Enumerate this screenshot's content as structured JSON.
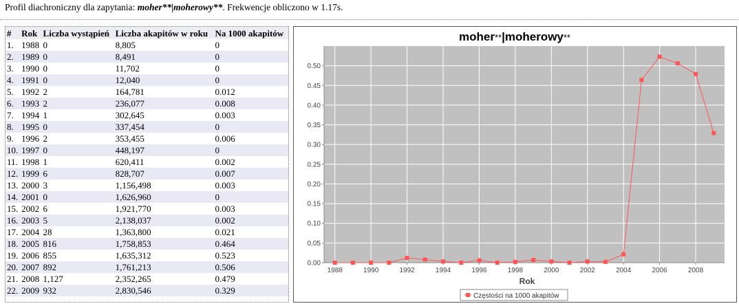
{
  "heading": {
    "prefix": "Profil diachroniczny dla zapytania: ",
    "query": "moher**|moherowy**",
    "suffix": ". Frekwencje obliczono w 1.17s."
  },
  "table": {
    "headers": [
      "#",
      "Rok",
      "Liczba wystąpień",
      "Liczba akapitów w roku",
      "Na 1000 akapitów"
    ],
    "rows": [
      [
        "1.",
        "1988",
        "0",
        "8,805",
        "0"
      ],
      [
        "2.",
        "1989",
        "0",
        "8,491",
        "0"
      ],
      [
        "3.",
        "1990",
        "0",
        "11,702",
        "0"
      ],
      [
        "4.",
        "1991",
        "0",
        "12,040",
        "0"
      ],
      [
        "5.",
        "1992",
        "2",
        "164,781",
        "0.012"
      ],
      [
        "6.",
        "1993",
        "2",
        "236,077",
        "0.008"
      ],
      [
        "7.",
        "1994",
        "1",
        "302,645",
        "0.003"
      ],
      [
        "8.",
        "1995",
        "0",
        "337,454",
        "0"
      ],
      [
        "9.",
        "1996",
        "2",
        "353,455",
        "0.006"
      ],
      [
        "10.",
        "1997",
        "0",
        "448,197",
        "0"
      ],
      [
        "11.",
        "1998",
        "1",
        "620,411",
        "0.002"
      ],
      [
        "12.",
        "1999",
        "6",
        "828,707",
        "0.007"
      ],
      [
        "13.",
        "2000",
        "3",
        "1,156,498",
        "0.003"
      ],
      [
        "14.",
        "2001",
        "0",
        "1,626,960",
        "0"
      ],
      [
        "15.",
        "2002",
        "6",
        "1,921,770",
        "0.003"
      ],
      [
        "16.",
        "2003",
        "5",
        "2,138,037",
        "0.002"
      ],
      [
        "17.",
        "2004",
        "28",
        "1,363,800",
        "0.021"
      ],
      [
        "18.",
        "2005",
        "816",
        "1,758,853",
        "0.464"
      ],
      [
        "19.",
        "2006",
        "855",
        "1,635,312",
        "0.523"
      ],
      [
        "20.",
        "2007",
        "892",
        "1,761,213",
        "0.506"
      ],
      [
        "21.",
        "2008",
        "1,127",
        "2,352,265",
        "0.479"
      ],
      [
        "22.",
        "2009",
        "932",
        "2,830,546",
        "0.329"
      ]
    ]
  },
  "chart_data": {
    "type": "line",
    "title_main": "moher",
    "title_stars1": "**",
    "title_sep": "|moherowy",
    "title_stars2": "**",
    "xlabel": "Rok",
    "ylabel": "",
    "x": [
      1988,
      1989,
      1990,
      1991,
      1992,
      1993,
      1994,
      1995,
      1996,
      1997,
      1998,
      1999,
      2000,
      2001,
      2002,
      2003,
      2004,
      2005,
      2006,
      2007,
      2008,
      2009
    ],
    "series": [
      {
        "name": "Częstości na 1000 akapitów",
        "values": [
          0,
          0,
          0,
          0,
          0.012,
          0.008,
          0.003,
          0,
          0.006,
          0,
          0.002,
          0.007,
          0.003,
          0,
          0.003,
          0.002,
          0.021,
          0.464,
          0.523,
          0.506,
          0.479,
          0.329
        ]
      }
    ],
    "xlim": [
      1987.4,
      2009.6
    ],
    "ylim": [
      0,
      0.55
    ],
    "xticks": [
      "1988",
      "1990",
      "1992",
      "1994",
      "1996",
      "1998",
      "2000",
      "2002",
      "2004",
      "2006",
      "2008"
    ],
    "yticks": [
      "0.00",
      "0.05",
      "0.10",
      "0.15",
      "0.20",
      "0.25",
      "0.30",
      "0.35",
      "0.40",
      "0.45",
      "0.50"
    ],
    "grid": true,
    "legend": "bottom",
    "colors": {
      "plot_bg": "#c0c0c0",
      "grid": "#ffffff",
      "line": "#ff5555"
    }
  }
}
